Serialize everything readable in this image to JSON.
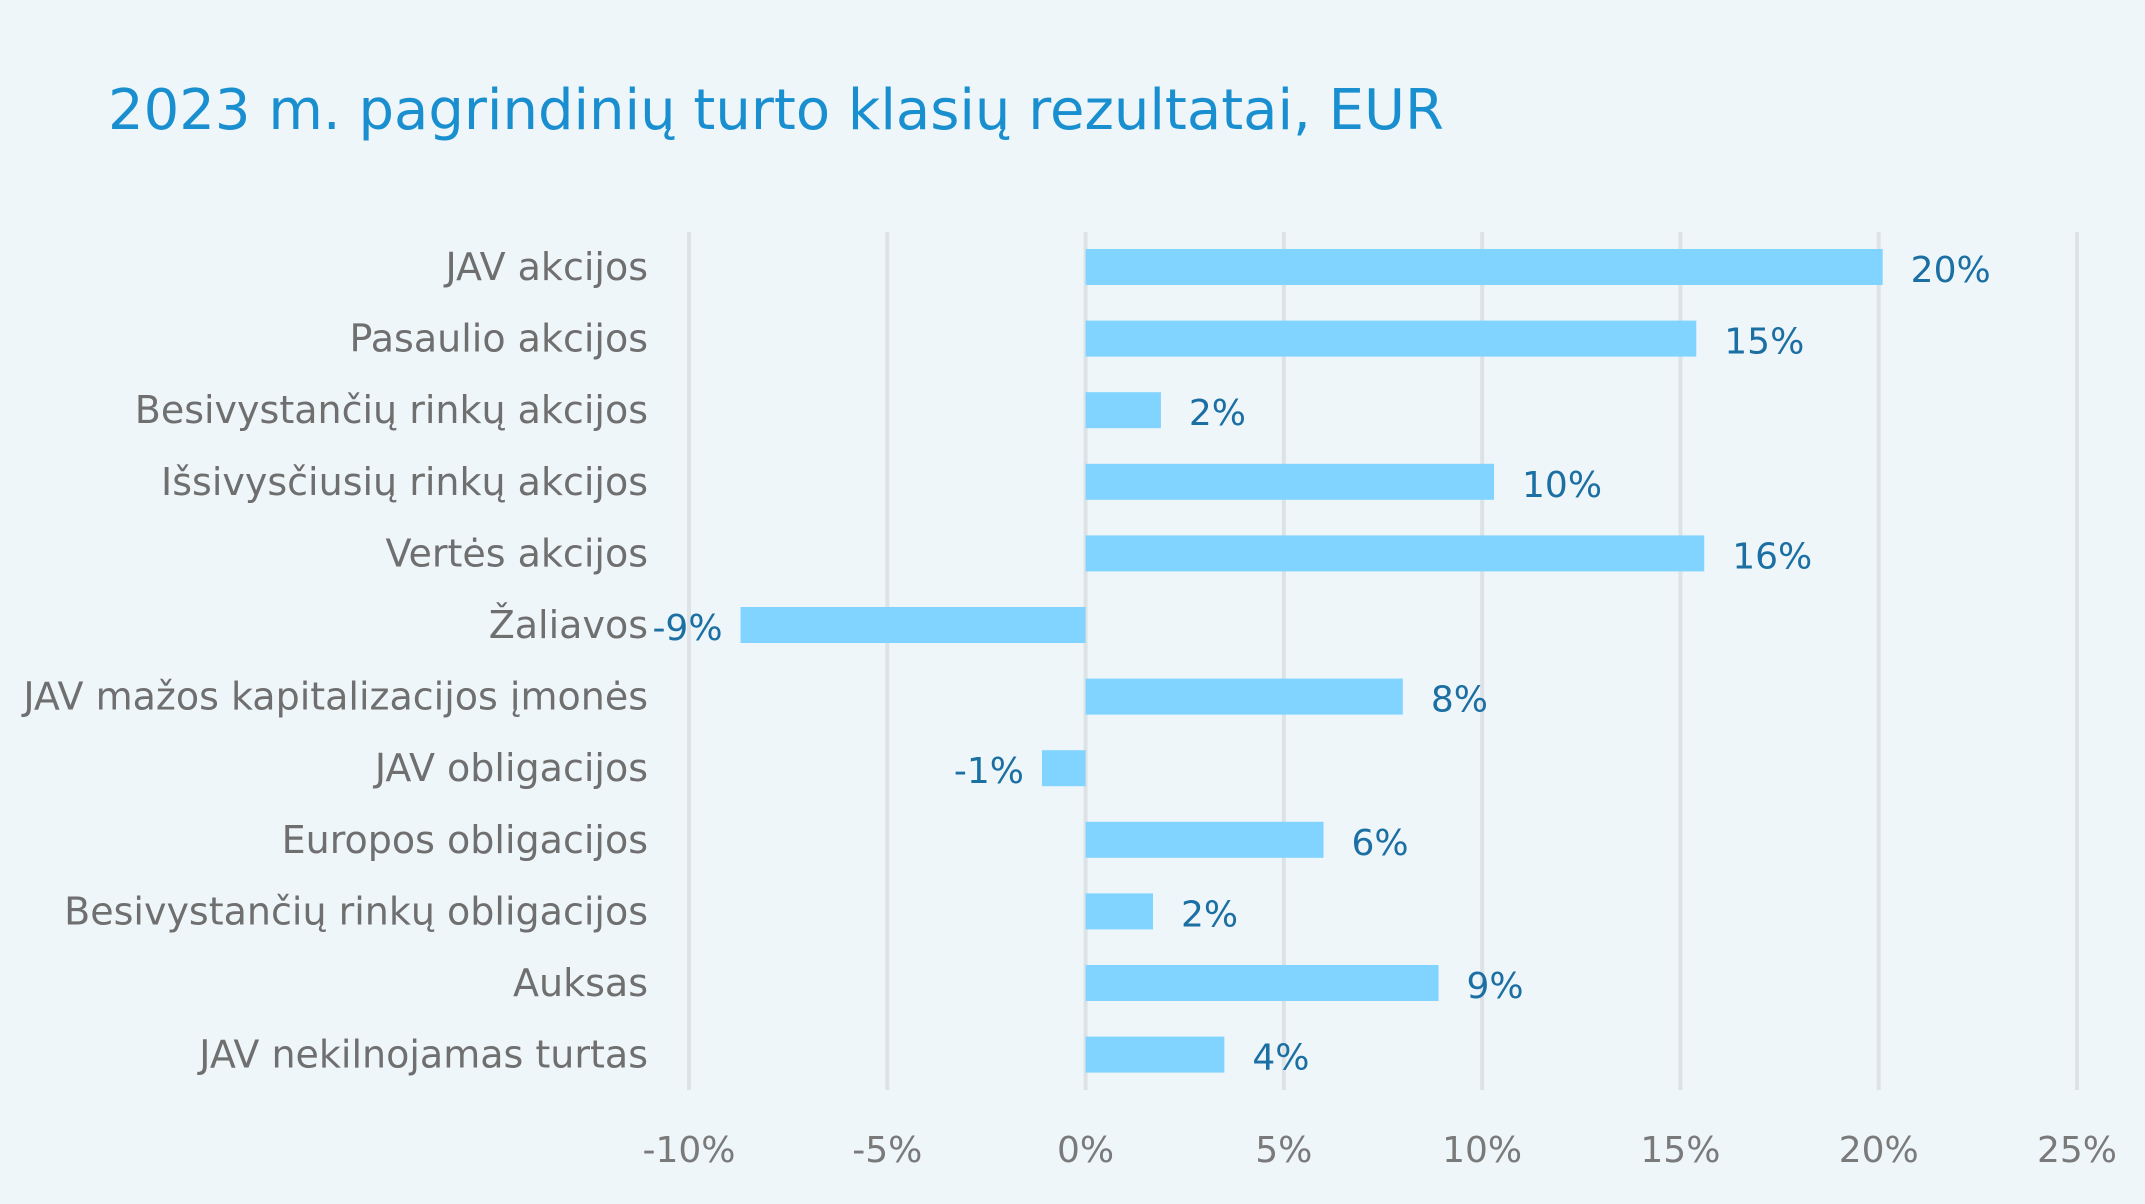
{
  "chart_data": {
    "type": "bar",
    "orientation": "horizontal",
    "title": "2023 m. pagrindinių turto klasių rezultatai, EUR",
    "categories": [
      "JAV akcijos",
      "Pasaulio akcijos",
      "Besivystančių rinkų akcijos",
      "Išsivysčiusių rinkų akcijos",
      "Vertės akcijos",
      "Žaliavos",
      "JAV mažos kapitalizacijos įmonės",
      "JAV obligacijos",
      "Europos obligacijos",
      "Besivystančių rinkų obligacijos",
      "Auksas",
      "JAV nekilnojamas turtas"
    ],
    "values": [
      20.1,
      15.4,
      1.9,
      10.3,
      15.6,
      -8.7,
      8.0,
      -1.1,
      6.0,
      1.7,
      8.9,
      3.5
    ],
    "data_labels": [
      "20%",
      "15%",
      "2%",
      "10%",
      "16%",
      "-9%",
      "8%",
      "-1%",
      "6%",
      "2%",
      "9%",
      "4%"
    ],
    "xlim": [
      -10,
      25
    ],
    "xticks": [
      -10,
      -5,
      0,
      5,
      10,
      15,
      20,
      25
    ],
    "xtick_labels": [
      "-10%",
      "-5%",
      "0%",
      "5%",
      "10%",
      "15%",
      "20%",
      "25%"
    ],
    "grid": "vertical",
    "colors": {
      "bar": "#80d4ff",
      "title": "#1a8fd0",
      "data_label": "#1b6fa3",
      "background": "#eef6fa"
    }
  }
}
